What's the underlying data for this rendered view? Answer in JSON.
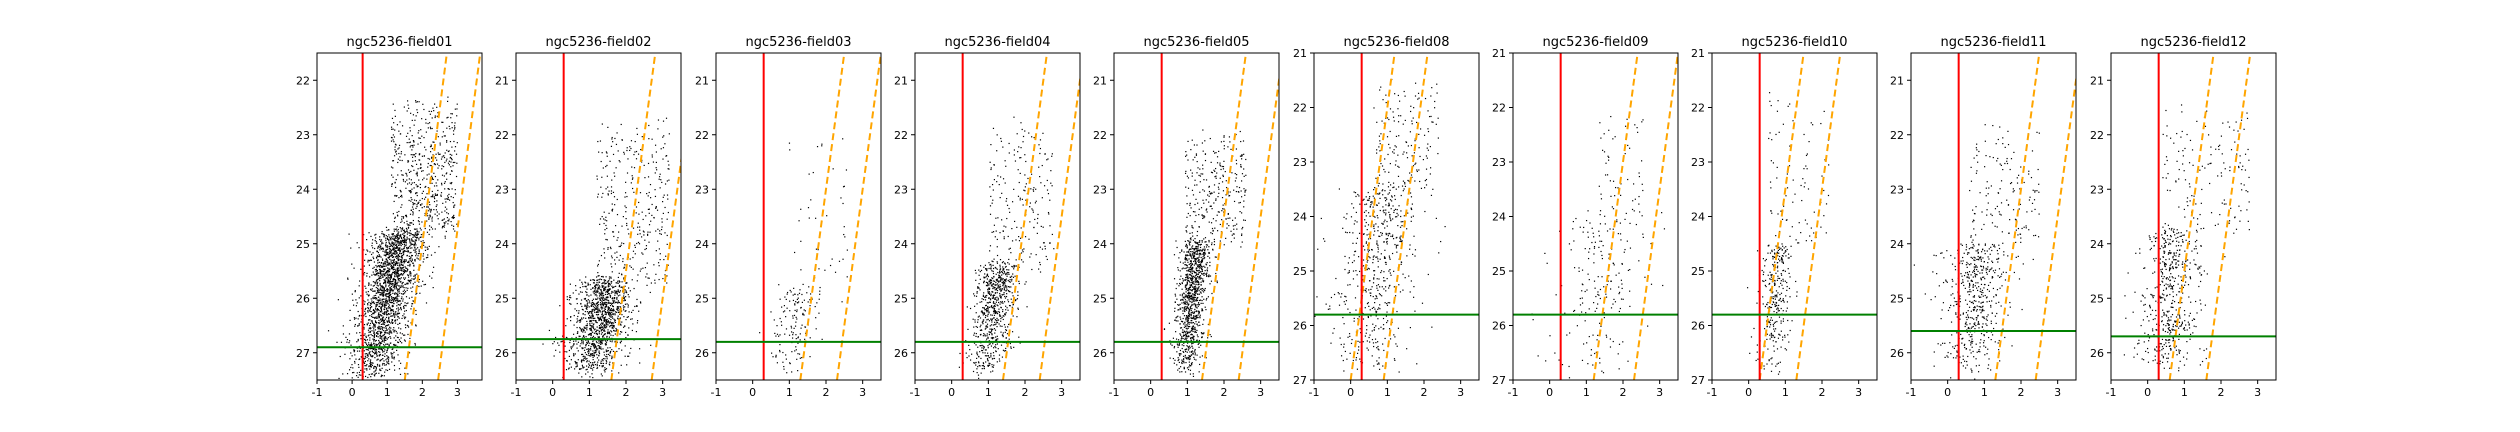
{
  "chart_data": [
    {
      "type": "scatter",
      "title": "ngc5236-field01",
      "xlim": [
        -1,
        3.7
      ],
      "ylim": [
        27.5,
        21.5
      ],
      "xticks": [
        -1,
        0,
        1,
        2,
        3
      ],
      "yticks": [
        22,
        23,
        24,
        25,
        26,
        27
      ],
      "vline": 0.3,
      "hline": 26.9,
      "diag_lines": [
        {
          "x_bottom": 1.5,
          "slope": 0.2
        },
        {
          "x_bottom": 2.45,
          "slope": 0.2
        }
      ],
      "cloud": {
        "n": 2600,
        "x0": 0.5,
        "y0": 27.5,
        "x1": 1.4,
        "y1": 24.8,
        "x_sd": 0.38,
        "y_top": 22.4,
        "x_tail": 2.7
      }
    },
    {
      "type": "scatter",
      "title": "ngc5236-field02",
      "xlim": [
        -1,
        3.5
      ],
      "ylim": [
        26.5,
        20.5
      ],
      "xticks": [
        -1,
        0,
        1,
        2,
        3
      ],
      "yticks": [
        21,
        22,
        23,
        24,
        25,
        26
      ],
      "vline": 0.3,
      "hline": 25.75,
      "diag_lines": [
        {
          "x_bottom": 1.6,
          "slope": 0.2
        },
        {
          "x_bottom": 2.7,
          "slope": 0.2
        }
      ],
      "cloud": {
        "n": 1500,
        "x0": 1.0,
        "y0": 26.4,
        "x1": 1.5,
        "y1": 24.7,
        "x_sd": 0.4,
        "y_top": 21.8,
        "x_tail": 2.9
      }
    },
    {
      "type": "scatter",
      "title": "ngc5236-field03",
      "xlim": [
        -1,
        3.5
      ],
      "ylim": [
        26.5,
        20.5
      ],
      "xticks": [
        -1,
        0,
        1,
        2,
        3
      ],
      "yticks": [
        21,
        22,
        23,
        24,
        25,
        26
      ],
      "vline": 0.3,
      "hline": 25.8,
      "diag_lines": [
        {
          "x_bottom": 1.3,
          "slope": 0.2
        },
        {
          "x_bottom": 2.3,
          "slope": 0.2
        }
      ],
      "cloud": {
        "n": 180,
        "x0": 0.9,
        "y0": 26.4,
        "x1": 1.3,
        "y1": 24.8,
        "x_sd": 0.35,
        "y_top": 22.0,
        "x_tail": 2.3
      }
    },
    {
      "type": "scatter",
      "title": "ngc5236-field04",
      "xlim": [
        -1,
        3.5
      ],
      "ylim": [
        26.5,
        20.5
      ],
      "xticks": [
        -1,
        0,
        1,
        2,
        3
      ],
      "yticks": [
        21,
        22,
        23,
        24,
        25,
        26
      ],
      "vline": 0.3,
      "hline": 25.8,
      "diag_lines": [
        {
          "x_bottom": 1.4,
          "slope": 0.2
        },
        {
          "x_bottom": 2.4,
          "slope": 0.2
        }
      ],
      "cloud": {
        "n": 900,
        "x0": 0.95,
        "y0": 26.4,
        "x1": 1.3,
        "y1": 24.4,
        "x_sd": 0.28,
        "y_top": 21.8,
        "x_tail": 2.5
      }
    },
    {
      "type": "scatter",
      "title": "ngc5236-field05",
      "xlim": [
        -1,
        3.5
      ],
      "ylim": [
        26.5,
        20.5
      ],
      "xticks": [
        -1,
        0,
        1,
        2,
        3
      ],
      "yticks": [
        21,
        22,
        23,
        24,
        25,
        26
      ],
      "vline": 0.3,
      "hline": 25.8,
      "diag_lines": [
        {
          "x_bottom": 1.4,
          "slope": 0.2
        },
        {
          "x_bottom": 2.4,
          "slope": 0.2
        }
      ],
      "cloud": {
        "n": 1300,
        "x0": 0.95,
        "y0": 26.4,
        "x1": 1.25,
        "y1": 24.0,
        "x_sd": 0.2,
        "y_top": 22.0,
        "x_tail": 2.3
      }
    },
    {
      "type": "scatter",
      "title": "ngc5236-field08",
      "xlim": [
        -1,
        3.5
      ],
      "ylim": [
        27,
        21
      ],
      "xticks": [
        -1,
        0,
        1,
        2,
        3
      ],
      "yticks": [
        21,
        22,
        23,
        24,
        25,
        26,
        27
      ],
      "vline": 0.3,
      "hline": 25.8,
      "diag_lines": [
        {
          "x_bottom": 0.0,
          "slope": 0.2
        },
        {
          "x_bottom": 0.9,
          "slope": 0.2
        }
      ],
      "cloud": {
        "n": 700,
        "x0": 0.4,
        "y0": 26.9,
        "x1": 0.9,
        "y1": 23.5,
        "x_sd": 0.5,
        "y_top": 21.5,
        "x_tail": 2.1
      }
    },
    {
      "type": "scatter",
      "title": "ngc5236-field09",
      "xlim": [
        -1,
        3.5
      ],
      "ylim": [
        27,
        21
      ],
      "xticks": [
        -1,
        0,
        1,
        2,
        3
      ],
      "yticks": [
        21,
        22,
        23,
        24,
        25,
        26,
        27
      ],
      "vline": 0.3,
      "hline": 25.8,
      "diag_lines": [
        {
          "x_bottom": 1.2,
          "slope": 0.2
        },
        {
          "x_bottom": 2.3,
          "slope": 0.2
        }
      ],
      "cloud": {
        "n": 250,
        "x0": 1.2,
        "y0": 26.9,
        "x1": 1.6,
        "y1": 24.0,
        "x_sd": 0.55,
        "y_top": 22.0,
        "x_tail": 2.3
      }
    },
    {
      "type": "scatter",
      "title": "ngc5236-field10",
      "xlim": [
        -1,
        3.5
      ],
      "ylim": [
        27,
        21
      ],
      "xticks": [
        -1,
        0,
        1,
        2,
        3
      ],
      "yticks": [
        21,
        22,
        23,
        24,
        25,
        26,
        27
      ],
      "vline": 0.3,
      "hline": 25.8,
      "diag_lines": [
        {
          "x_bottom": 0.3,
          "slope": 0.2
        },
        {
          "x_bottom": 1.3,
          "slope": 0.2
        }
      ],
      "cloud": {
        "n": 380,
        "x0": 0.6,
        "y0": 26.9,
        "x1": 0.8,
        "y1": 24.5,
        "x_sd": 0.22,
        "y_top": 21.8,
        "x_tail": 1.9
      }
    },
    {
      "type": "scatter",
      "title": "ngc5236-field11",
      "xlim": [
        -1,
        3.5
      ],
      "ylim": [
        26.5,
        20.5
      ],
      "xticks": [
        -1,
        0,
        1,
        2,
        3
      ],
      "yticks": [
        21,
        22,
        23,
        24,
        25,
        26
      ],
      "vline": 0.3,
      "hline": 25.6,
      "diag_lines": [
        {
          "x_bottom": 1.3,
          "slope": 0.2
        },
        {
          "x_bottom": 2.4,
          "slope": 0.2
        }
      ],
      "cloud": {
        "n": 650,
        "x0": 0.6,
        "y0": 26.4,
        "x1": 0.9,
        "y1": 24.0,
        "x_sd": 0.45,
        "y_top": 21.8,
        "x_tail": 2.2
      }
    },
    {
      "type": "scatter",
      "title": "ngc5236-field12",
      "xlim": [
        -1,
        3.5
      ],
      "ylim": [
        26.5,
        20.5
      ],
      "xticks": [
        -1,
        0,
        1,
        2,
        3
      ],
      "yticks": [
        21,
        22,
        23,
        24,
        25,
        26
      ],
      "vline": 0.3,
      "hline": 25.7,
      "diag_lines": [
        {
          "x_bottom": 0.6,
          "slope": 0.2
        },
        {
          "x_bottom": 1.6,
          "slope": 0.2
        }
      ],
      "cloud": {
        "n": 650,
        "x0": 0.5,
        "y0": 26.4,
        "x1": 0.7,
        "y1": 23.8,
        "x_sd": 0.4,
        "y_top": 21.5,
        "x_tail": 2.5
      }
    }
  ],
  "colors": {
    "points": "#000000",
    "vline": "#ff0000",
    "hline": "#008000",
    "diag": "#ffa500",
    "axes": "#000000"
  }
}
